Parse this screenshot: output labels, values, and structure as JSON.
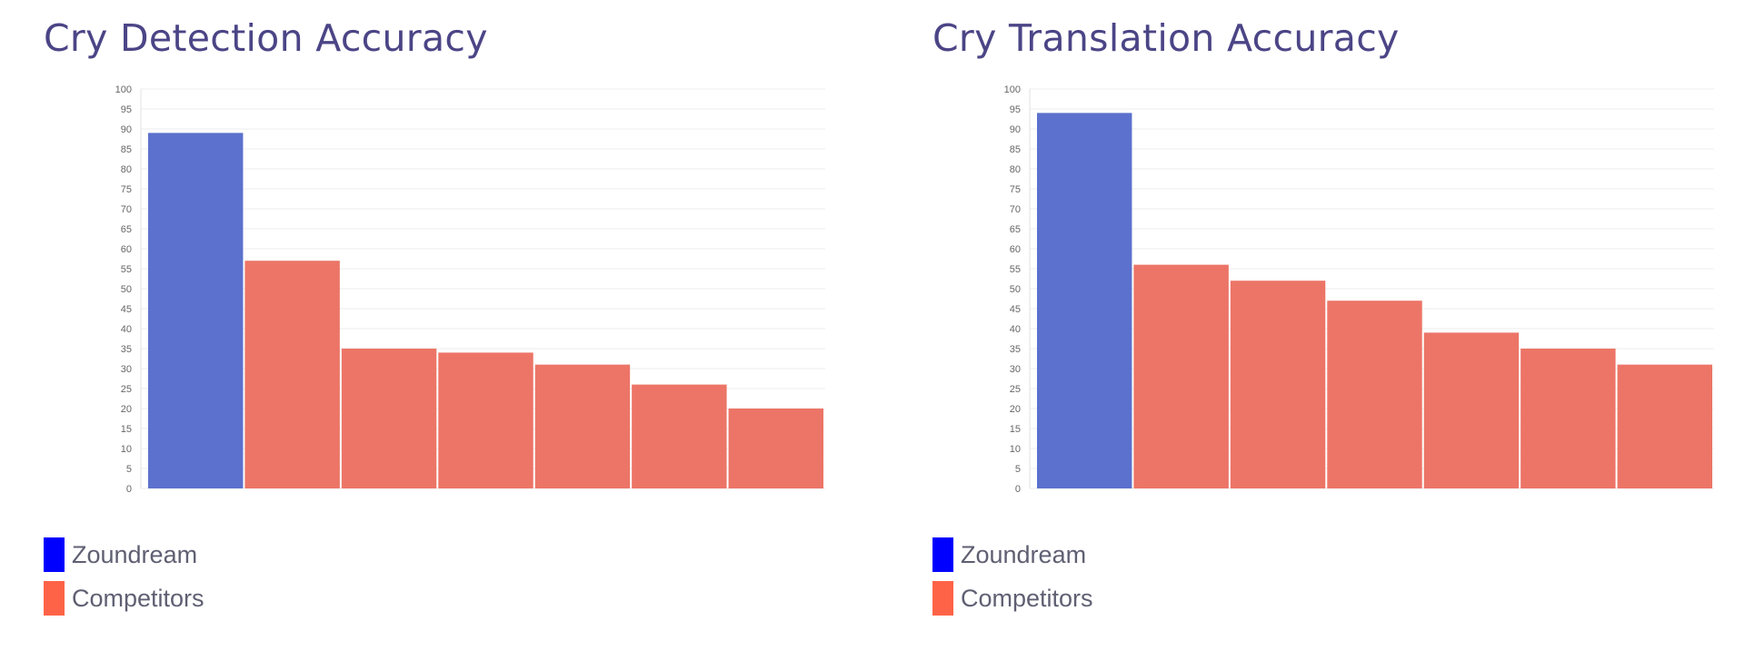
{
  "colors": {
    "zoundream_bar": "#5b71cd",
    "competitor_bar": "#ec7567",
    "title": "#4b4586"
  },
  "chart_data": [
    {
      "type": "bar",
      "title": "Cry Detection Accuracy",
      "categories": [
        "",
        "",
        "",
        "",
        "",
        "",
        ""
      ],
      "values": [
        89,
        57,
        35,
        34,
        31,
        26,
        20
      ],
      "series_of_bar": [
        "Zoundream",
        "Competitors",
        "Competitors",
        "Competitors",
        "Competitors",
        "Competitors",
        "Competitors"
      ],
      "ylim": [
        0,
        100
      ],
      "yticks": [
        "0",
        "5",
        "10",
        "15",
        "20",
        "25",
        "30",
        "35",
        "40",
        "45",
        "50",
        "55",
        "60",
        "65",
        "70",
        "75",
        "80",
        "85",
        "90",
        "95",
        "100"
      ],
      "grid": true,
      "legend": [
        {
          "name": "Zoundream",
          "color": "#0000ff"
        },
        {
          "name": "Competitors",
          "color": "#ff6347"
        }
      ],
      "legend_position": "bottom-left"
    },
    {
      "type": "bar",
      "title": "Cry Translation Accuracy",
      "categories": [
        "",
        "",
        "",
        "",
        "",
        "",
        ""
      ],
      "values": [
        94,
        56,
        52,
        47,
        39,
        35,
        31
      ],
      "series_of_bar": [
        "Zoundream",
        "Competitors",
        "Competitors",
        "Competitors",
        "Competitors",
        "Competitors",
        "Competitors"
      ],
      "ylim": [
        0,
        100
      ],
      "yticks": [
        "0",
        "5",
        "10",
        "15",
        "20",
        "25",
        "30",
        "35",
        "40",
        "45",
        "50",
        "55",
        "60",
        "65",
        "70",
        "75",
        "80",
        "85",
        "90",
        "95",
        "100"
      ],
      "grid": true,
      "legend": [
        {
          "name": "Zoundream",
          "color": "#0000ff"
        },
        {
          "name": "Competitors",
          "color": "#ff6347"
        }
      ],
      "legend_position": "bottom-left"
    }
  ]
}
